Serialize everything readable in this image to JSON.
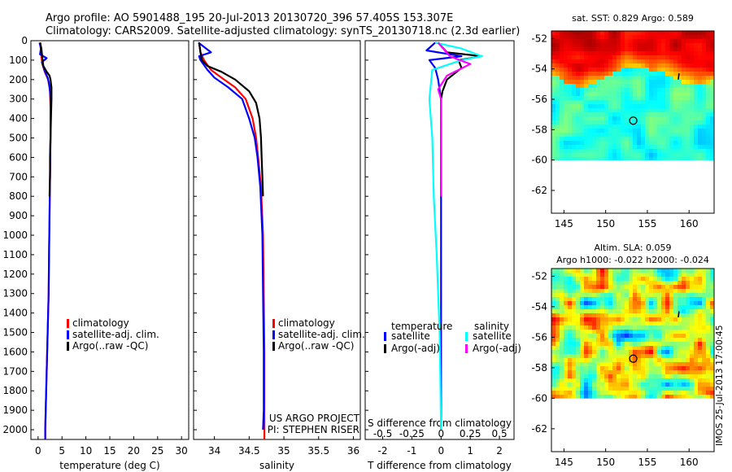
{
  "header": {
    "title_line1": "Argo profile: AO 5901488_195 20-Jul-2013 20130720_396 57.405S 153.307E",
    "title_line2": "Climatology: CARS2009. Satellite-adjusted climatology: synTS_20130718.nc (2.3d earlier)"
  },
  "side_stamp": "IMOS 25-Jul-2013 17:00:45",
  "colors": {
    "climatology": "#ff0000",
    "satellite": "#0000ff",
    "argo": "#000000",
    "s_satellite": "#00ffff",
    "s_argo": "#ff00ff"
  },
  "chart_data": [
    {
      "id": "temperature",
      "type": "line",
      "xlabel": "temperature (deg C)",
      "ylabel": "",
      "xlim": [
        -1.5,
        31.5
      ],
      "ylim": [
        2050,
        0
      ],
      "x_ticks": [
        0,
        5,
        10,
        15,
        20,
        25,
        30
      ],
      "y_ticks": [
        0,
        100,
        200,
        300,
        400,
        500,
        600,
        700,
        800,
        900,
        1000,
        1100,
        1200,
        1300,
        1400,
        1500,
        1600,
        1700,
        1800,
        1900,
        2000
      ],
      "legend": [
        "climatology",
        "satellite-adj. clim.",
        "Argo(..raw -QC)"
      ],
      "series": [
        {
          "name": "climatology",
          "color": "#ff0000",
          "points": [
            [
              0.5,
              10
            ],
            [
              0.6,
              60
            ],
            [
              0.9,
              120
            ],
            [
              1.4,
              160
            ],
            [
              2.1,
              200
            ],
            [
              2.5,
              260
            ],
            [
              2.6,
              350
            ],
            [
              2.6,
              500
            ],
            [
              2.5,
              700
            ],
            [
              2.4,
              900
            ],
            [
              2.3,
              1100
            ],
            [
              2.2,
              1300
            ],
            [
              2.0,
              1500
            ],
            [
              1.8,
              1700
            ],
            [
              1.6,
              1900
            ],
            [
              1.5,
              2000
            ],
            [
              1.5,
              2050
            ]
          ]
        },
        {
          "name": "satellite-adj. clim.",
          "color": "#0000ff",
          "points": [
            [
              0.3,
              10
            ],
            [
              0.6,
              40
            ],
            [
              0.4,
              70
            ],
            [
              1.8,
              90
            ],
            [
              0.8,
              110
            ],
            [
              1.3,
              150
            ],
            [
              2.0,
              190
            ],
            [
              2.4,
              230
            ],
            [
              2.6,
              300
            ],
            [
              2.6,
              500
            ],
            [
              2.5,
              700
            ],
            [
              2.4,
              900
            ],
            [
              2.3,
              1100
            ],
            [
              2.2,
              1300
            ],
            [
              2.0,
              1500
            ],
            [
              1.8,
              1700
            ],
            [
              1.6,
              1900
            ],
            [
              1.5,
              2000
            ],
            [
              1.5,
              2050
            ]
          ]
        },
        {
          "name": "Argo(..raw -QC)",
          "color": "#000000",
          "points": [
            [
              0.4,
              10
            ],
            [
              0.7,
              40
            ],
            [
              0.9,
              90
            ],
            [
              1.1,
              130
            ],
            [
              1.8,
              160
            ],
            [
              2.4,
              180
            ],
            [
              2.6,
              200
            ],
            [
              2.8,
              240
            ],
            [
              2.8,
              300
            ],
            [
              2.7,
              400
            ],
            [
              2.6,
              500
            ],
            [
              2.5,
              600
            ],
            [
              2.5,
              700
            ],
            [
              2.4,
              800
            ]
          ]
        }
      ]
    },
    {
      "id": "salinity",
      "type": "line",
      "xlabel": "salinity",
      "ylabel": "",
      "xlim": [
        33.7,
        36.1
      ],
      "ylim": [
        2050,
        0
      ],
      "x_ticks": [
        34,
        34.5,
        35,
        35.5,
        36
      ],
      "legend": [
        "climatology",
        "satellite-adj. clim.",
        "Argo(..raw -QC)"
      ],
      "series": [
        {
          "name": "climatology",
          "color": "#ff0000",
          "points": [
            [
              33.78,
              10
            ],
            [
              33.8,
              60
            ],
            [
              33.85,
              100
            ],
            [
              33.95,
              150
            ],
            [
              34.1,
              190
            ],
            [
              34.3,
              240
            ],
            [
              34.45,
              300
            ],
            [
              34.55,
              400
            ],
            [
              34.6,
              500
            ],
            [
              34.63,
              600
            ],
            [
              34.67,
              750
            ],
            [
              34.7,
              1000
            ],
            [
              34.71,
              1300
            ],
            [
              34.72,
              1600
            ],
            [
              34.72,
              1900
            ],
            [
              34.72,
              2050
            ]
          ]
        },
        {
          "name": "satellite-adj. clim.",
          "color": "#0000ff",
          "points": [
            [
              33.77,
              10
            ],
            [
              33.95,
              60
            ],
            [
              33.78,
              80
            ],
            [
              33.8,
              100
            ],
            [
              33.9,
              150
            ],
            [
              34.0,
              190
            ],
            [
              34.2,
              240
            ],
            [
              34.4,
              300
            ],
            [
              34.5,
              400
            ],
            [
              34.58,
              500
            ],
            [
              34.62,
              600
            ],
            [
              34.66,
              750
            ],
            [
              34.69,
              1000
            ],
            [
              34.7,
              1300
            ],
            [
              34.71,
              1600
            ],
            [
              34.71,
              1900
            ],
            [
              34.7,
              2000
            ]
          ]
        },
        {
          "name": "Argo(..raw -QC)",
          "color": "#000000",
          "points": [
            [
              33.78,
              10
            ],
            [
              33.8,
              60
            ],
            [
              33.82,
              100
            ],
            [
              33.9,
              130
            ],
            [
              34.1,
              160
            ],
            [
              34.3,
              200
            ],
            [
              34.5,
              260
            ],
            [
              34.6,
              320
            ],
            [
              34.65,
              400
            ],
            [
              34.67,
              500
            ],
            [
              34.68,
              600
            ],
            [
              34.69,
              700
            ],
            [
              34.7,
              800
            ]
          ]
        }
      ],
      "annotation_lines": [
        "US ARGO PROJECT",
        "PI: STEPHEN RISER"
      ]
    },
    {
      "id": "differences",
      "type": "line",
      "xlabel": "T difference from climatology",
      "x2label": "S difference from climatology",
      "ylabel": "",
      "xlim": [
        -2.6,
        2.5
      ],
      "ylim": [
        2050,
        0
      ],
      "x_ticks": [
        -2,
        -1,
        0,
        1,
        2
      ],
      "x2_ticks": [
        -0.5,
        -0.25,
        0,
        0.25,
        0.5
      ],
      "x2_tick_labels": [
        "-0.5",
        "-0.25",
        "0",
        "0.25",
        "0.5"
      ],
      "legend_titles": [
        "temperature",
        "salinity"
      ],
      "legend": [
        "satellite",
        "Argo(-adj)",
        "satellite",
        "Argo(-adj)"
      ],
      "series": [
        {
          "name": "satellite",
          "color": "#0000ff",
          "points": [
            [
              -0.2,
              10
            ],
            [
              -0.5,
              50
            ],
            [
              0.7,
              80
            ],
            [
              -0.4,
              100
            ],
            [
              -0.2,
              140
            ],
            [
              -0.1,
              200
            ],
            [
              0.0,
              300
            ],
            [
              0.0,
              500
            ],
            [
              0.0,
              800
            ],
            [
              0.0,
              1200
            ],
            [
              0.0,
              1600
            ],
            [
              0.0,
              2000
            ]
          ]
        },
        {
          "name": "Argo(-adj)",
          "color": "#000000",
          "points": [
            [
              -0.1,
              10
            ],
            [
              0.2,
              60
            ],
            [
              1.4,
              80
            ],
            [
              0.6,
              100
            ],
            [
              0.7,
              140
            ],
            [
              0.2,
              200
            ],
            [
              0.05,
              260
            ],
            [
              0.0,
              300
            ],
            [
              0.0,
              500
            ],
            [
              0.0,
              800
            ]
          ]
        },
        {
          "name": "satellite",
          "color": "#00ffff",
          "points": [
            [
              -0.2,
              10
            ],
            [
              0.7,
              40
            ],
            [
              1.4,
              80
            ],
            [
              0.7,
              100
            ],
            [
              -0.3,
              150
            ],
            [
              -0.4,
              300
            ],
            [
              -0.3,
              500
            ],
            [
              -0.25,
              800
            ],
            [
              -0.15,
              1100
            ],
            [
              -0.05,
              1500
            ],
            [
              0.0,
              2000
            ]
          ]
        },
        {
          "name": "Argo(-adj)",
          "color": "#ff00ff",
          "points": [
            [
              -0.1,
              10
            ],
            [
              0.3,
              80
            ],
            [
              1.0,
              120
            ],
            [
              0.2,
              180
            ],
            [
              -0.1,
              250
            ],
            [
              0.0,
              300
            ],
            [
              0.0,
              500
            ],
            [
              0.0,
              800
            ]
          ]
        }
      ]
    },
    {
      "id": "sst_map",
      "type": "heatmap",
      "title": "sat. SST: 0.829 Argo: 0.589",
      "xlim": [
        143.5,
        163
      ],
      "ylim": [
        -63.5,
        -51.5
      ],
      "x_ticks": [
        145,
        150,
        155,
        160
      ],
      "y_ticks": [
        -52,
        -54,
        -56,
        -58,
        -60,
        -62
      ],
      "data_extent": {
        "lon": [
          143.5,
          163
        ],
        "lat": [
          -60,
          -51.5
        ]
      },
      "argo_position": {
        "lon": 153.307,
        "lat": -57.405
      }
    },
    {
      "id": "sla_map",
      "type": "heatmap",
      "title": "Altim. SLA: 0.059",
      "subtitle": "Argo h1000: -0.022 h2000: -0.024",
      "xlim": [
        143.5,
        163
      ],
      "ylim": [
        -63.5,
        -51.5
      ],
      "x_ticks": [
        145,
        150,
        155,
        160
      ],
      "y_ticks": [
        -52,
        -54,
        -56,
        -58,
        -60,
        -62
      ],
      "data_extent": {
        "lon": [
          143.5,
          163
        ],
        "lat": [
          -60,
          -51.5
        ]
      },
      "argo_position": {
        "lon": 153.307,
        "lat": -57.405
      }
    }
  ]
}
